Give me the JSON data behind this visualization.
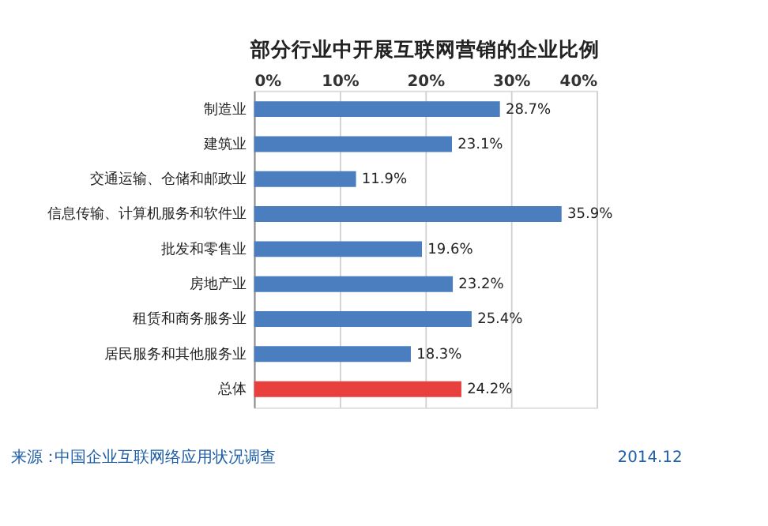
{
  "chart_data": {
    "type": "bar",
    "orientation": "horizontal",
    "title": "部分行业中开展互联网营销的企业比例",
    "categories": [
      "制造业",
      "建筑业",
      "交通运输、仓储和邮政业",
      "信息传输、计算机服务和软件业",
      "批发和零售业",
      "房地产业",
      "租赁和商务服务业",
      "居民服务和其他服务业",
      "总体"
    ],
    "values": [
      28.7,
      23.1,
      11.9,
      35.9,
      19.6,
      23.2,
      25.4,
      18.3,
      24.2
    ],
    "colors": [
      "#4a7ebf",
      "#4a7ebf",
      "#4a7ebf",
      "#4a7ebf",
      "#4a7ebf",
      "#4a7ebf",
      "#4a7ebf",
      "#4a7ebf",
      "#e8403e"
    ],
    "value_labels": [
      "28.7%",
      "23.1%",
      "11.9%",
      "35.9%",
      "19.6%",
      "23.2%",
      "25.4%",
      "18.3%",
      "24.2%"
    ],
    "xlim": [
      0,
      40
    ],
    "xticks": [
      {
        "value": 0,
        "label": "0%"
      },
      {
        "value": 10,
        "label": "10%"
      },
      {
        "value": 20,
        "label": "20%"
      },
      {
        "value": 30,
        "label": "30%"
      },
      {
        "value": 40,
        "label": "40%"
      }
    ],
    "grid": "x",
    "annotations": [
      "来源：",
      "中国企业互联网络应用状况调查",
      "2014.12"
    ]
  }
}
